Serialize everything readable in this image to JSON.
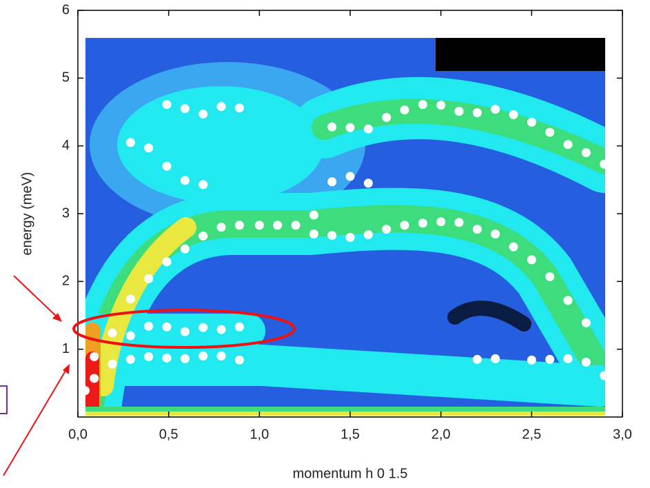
{
  "chart_data": {
    "type": "scatter",
    "xlabel": "momentum h 0 1.5",
    "ylabel": "energy (meV)",
    "xlim": [
      0,
      3
    ],
    "ylim": [
      0,
      6
    ],
    "xticks": [
      {
        "value": 0,
        "label": "0,0"
      },
      {
        "value": 0.5,
        "label": "0,5"
      },
      {
        "value": 1,
        "label": "1,0"
      },
      {
        "value": 1.5,
        "label": "1,5"
      },
      {
        "value": 2,
        "label": "2,0"
      },
      {
        "value": 2.5,
        "label": "2,5"
      },
      {
        "value": 3,
        "label": "3,0"
      }
    ],
    "yticks": [
      1,
      2,
      3,
      4,
      5,
      6
    ],
    "color": "#ffffff",
    "x": [
      0.49,
      0.59,
      0.69,
      0.79,
      0.89,
      0.29,
      0.39,
      0.49,
      0.59,
      0.69,
      1.4,
      1.5,
      1.6,
      1.7,
      1.8,
      1.9,
      2.0,
      2.1,
      2.2,
      2.3,
      2.4,
      2.5,
      2.6,
      2.7,
      2.8,
      2.9,
      1.4,
      1.5,
      1.6,
      0.04,
      0.09,
      0.09,
      0.19,
      0.29,
      0.39,
      0.49,
      0.59,
      0.69,
      0.79,
      0.89,
      1.0,
      1.1,
      1.2,
      1.3,
      1.3,
      1.4,
      1.5,
      1.6,
      1.7,
      1.8,
      1.9,
      2.0,
      2.1,
      2.2,
      2.3,
      2.4,
      2.5,
      2.6,
      2.7,
      2.8,
      2.9,
      0.29,
      0.39,
      0.49,
      0.59,
      0.69,
      0.79,
      0.89,
      0.19,
      0.29,
      0.39,
      0.49,
      0.59,
      0.69,
      0.79,
      0.89,
      2.2,
      2.3,
      2.5,
      2.6,
      2.7,
      2.8
    ],
    "values": [
      4.61,
      4.55,
      4.47,
      4.58,
      4.56,
      4.05,
      3.97,
      3.7,
      3.49,
      3.43,
      4.28,
      4.27,
      4.25,
      4.42,
      4.53,
      4.61,
      4.6,
      4.51,
      4.49,
      4.54,
      4.46,
      4.35,
      4.2,
      4.02,
      3.9,
      3.73,
      3.47,
      3.55,
      3.45,
      0.39,
      0.57,
      0.89,
      1.24,
      1.74,
      2.04,
      2.29,
      2.48,
      2.67,
      2.8,
      2.83,
      2.83,
      2.83,
      2.83,
      2.98,
      2.7,
      2.68,
      2.65,
      2.69,
      2.77,
      2.83,
      2.86,
      2.88,
      2.87,
      2.77,
      2.7,
      2.51,
      2.32,
      2.07,
      1.72,
      1.39,
      0.61,
      1.2,
      1.34,
      1.33,
      1.26,
      1.32,
      1.29,
      1.33,
      0.78,
      0.85,
      0.89,
      0.87,
      0.86,
      0.9,
      0.9,
      0.84,
      0.85,
      0.86,
      0.84,
      0.85,
      0.86,
      0.81
    ]
  }
}
